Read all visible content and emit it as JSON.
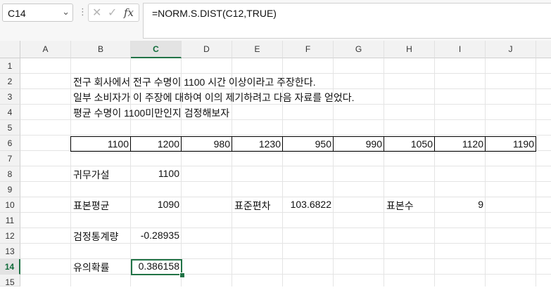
{
  "name_box": "C14",
  "formula_bar": "=NORM.S.DIST(C12,TRUE)",
  "columns": [
    "A",
    "B",
    "C",
    "D",
    "E",
    "F",
    "G",
    "H",
    "I",
    "J"
  ],
  "rows": [
    "1",
    "2",
    "3",
    "4",
    "5",
    "6",
    "7",
    "8",
    "9",
    "10",
    "11",
    "12",
    "13",
    "14",
    "15"
  ],
  "text": {
    "line1": "전구 회사에서 전구 수명이 1100 시간 이상이라고 주장한다.",
    "line2": "일부 소비자가 이 주장에 대하여 이의 제기하려고 다음 자료를 얻었다.",
    "line3": "평균 수명이 1100미만인지 검정해보자"
  },
  "data_row": [
    "1100",
    "1200",
    "980",
    "1230",
    "950",
    "990",
    "1050",
    "1120",
    "1190"
  ],
  "labels": {
    "hypothesis": "귀무가설",
    "sample_mean": "표본평균",
    "std_dev": "표준편차",
    "sample_size": "표본수",
    "test_stat": "검정통계량",
    "p_value": "유의확률"
  },
  "values": {
    "hypothesis": "1100",
    "sample_mean": "1090",
    "std_dev": "103.6822",
    "sample_size": "9",
    "test_stat": "-0.28935",
    "p_value": "0.386158"
  }
}
